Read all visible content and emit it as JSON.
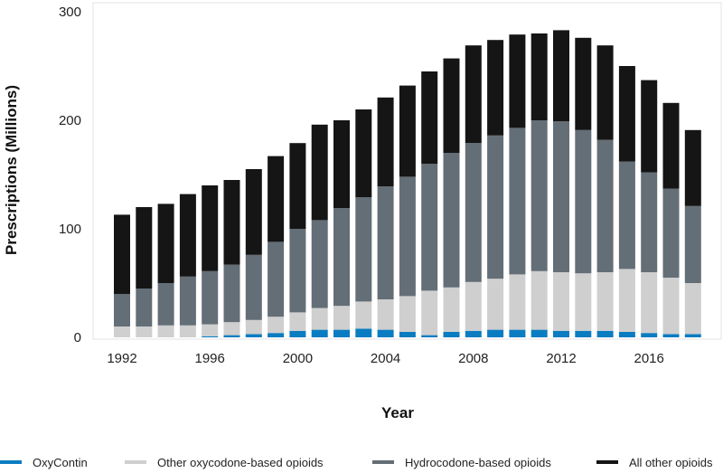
{
  "chart_data": {
    "type": "bar",
    "stacked": true,
    "xlabel": "Year",
    "ylabel": "Prescriptions (Millions)",
    "ylim": [
      0,
      300
    ],
    "yticks": [
      0,
      100,
      200,
      300
    ],
    "xticks": [
      1992,
      1996,
      2000,
      2004,
      2008,
      2012,
      2016
    ],
    "grid": false,
    "legend": "bottom",
    "categories": [
      1992,
      1993,
      1994,
      1995,
      1996,
      1997,
      1998,
      1999,
      2000,
      2001,
      2002,
      2003,
      2004,
      2005,
      2006,
      2007,
      2008,
      2009,
      2010,
      2011,
      2012,
      2013,
      2014,
      2015,
      2016,
      2017,
      2018
    ],
    "series": [
      {
        "name": "OxyContin",
        "color": "#0a7cc1",
        "values": [
          0,
          0,
          0,
          0,
          1,
          2,
          3,
          4,
          6,
          7,
          7,
          8,
          7,
          5,
          2,
          5,
          6,
          7,
          7,
          7,
          6,
          6,
          6,
          5,
          4,
          3,
          3
        ]
      },
      {
        "name": "Other oxycodone-based opioids",
        "color": "#cfcfcf",
        "values": [
          10,
          10,
          11,
          11,
          11,
          12,
          13,
          15,
          17,
          20,
          22,
          25,
          28,
          33,
          41,
          41,
          45,
          47,
          51,
          54,
          54,
          53,
          54,
          58,
          56,
          52,
          47
        ]
      },
      {
        "name": "Hydrocodone-based opioids",
        "color": "#646e77",
        "values": [
          30,
          35,
          39,
          45,
          49,
          53,
          60,
          69,
          77,
          81,
          90,
          96,
          104,
          110,
          117,
          124,
          128,
          132,
          135,
          139,
          139,
          132,
          122,
          99,
          92,
          82,
          71
        ]
      },
      {
        "name": "All other opioids",
        "color": "#151515",
        "values": [
          73,
          75,
          73,
          76,
          79,
          78,
          79,
          79,
          79,
          88,
          81,
          81,
          82,
          84,
          85,
          87,
          90,
          88,
          86,
          80,
          84,
          85,
          87,
          88,
          85,
          79,
          70
        ]
      }
    ]
  }
}
